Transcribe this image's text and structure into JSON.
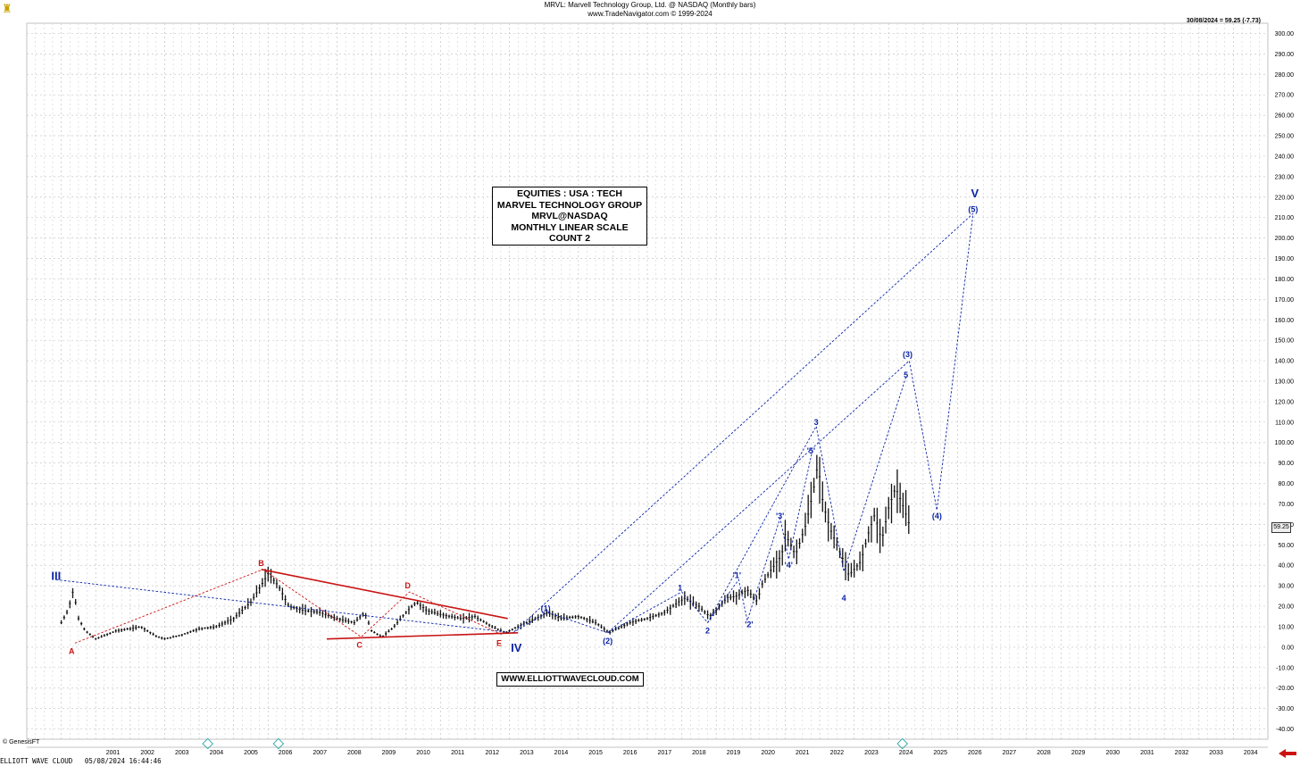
{
  "header": {
    "line1": "MRVL:  Marvell Technology Group, Ltd. @ NASDAQ  (Monthly bars)",
    "line2": "www.TradeNavigator.com © 1999-2024",
    "last": "30/08/2024 = 59.25 (-7.73)"
  },
  "info_box": [
    "EQUITIES : USA : TECH",
    "MARVEL TECHNOLOGY GROUP",
    "MRVL@NASDAQ",
    "MONTHLY LINEAR SCALE",
    "COUNT 2"
  ],
  "url": "WWW.ELLIOTTWAVECLOUD.COM",
  "genesis": "© GenesisFT",
  "footer": "ELLIOTT WAVE CLOUD   05/08/2024 16:44:46",
  "price_tag": "59.25",
  "colors": {
    "wave_blue": "#0b24a8",
    "wave_red": "#c81414",
    "grid": "#c8c8c8",
    "bar": "#111111",
    "last_arrow": "#cc1111"
  },
  "icons": {
    "corner": "bell-icon",
    "scroll": "scroll-right-arrow-icon"
  },
  "chart_data": {
    "type": "bar",
    "title": "MRVL:  Marvell Technology Group, Ltd. @ NASDAQ  (Monthly bars)",
    "ylim": [
      -45,
      305
    ],
    "xlim": [
      2000.0,
      2035.0
    ],
    "grid": true,
    "y_ticks": [
      300,
      290,
      280,
      270,
      260,
      250,
      240,
      230,
      220,
      210,
      200,
      190,
      180,
      170,
      160,
      150,
      140,
      130,
      120,
      110,
      100,
      90,
      80,
      70,
      60,
      50,
      40,
      30,
      20,
      10,
      0,
      -10,
      -20,
      -30,
      -40
    ],
    "y_tick_labels": [
      "300.00",
      "290.00",
      "280.00",
      "270.00",
      "260.00",
      "250.00",
      "240.00",
      "230.00",
      "220.00",
      "210.00",
      "200.00",
      "190.00",
      "180.00",
      "170.00",
      "160.00",
      "150.00",
      "140.00",
      "130.00",
      "120.00",
      "110.00",
      "100.00",
      "90.00",
      "80.00",
      "70.00",
      "60.00",
      "50.00",
      "40.00",
      "30.00",
      "20.00",
      "10.00",
      "0.00",
      "-10.00",
      "-20.00",
      "-30.00",
      "-40.00"
    ],
    "x_ticks": [
      "2001",
      "2002",
      "2003",
      "2004",
      "2005",
      "2006",
      "2007",
      "2008",
      "2009",
      "2010",
      "2011",
      "2012",
      "2013",
      "2014",
      "2015",
      "2016",
      "2017",
      "2018",
      "2019",
      "2020",
      "2021",
      "2022",
      "2023",
      "2024",
      "2025",
      "2026",
      "2027",
      "2028",
      "2029",
      "2030",
      "2031",
      "2032",
      "2033",
      "2034"
    ],
    "price_path": [
      [
        2000.0,
        12
      ],
      [
        2000.2,
        18
      ],
      [
        2000.35,
        28
      ],
      [
        2000.5,
        14
      ],
      [
        2000.7,
        8
      ],
      [
        2001.0,
        4
      ],
      [
        2001.3,
        6
      ],
      [
        2001.6,
        8
      ],
      [
        2002.0,
        9
      ],
      [
        2002.3,
        10
      ],
      [
        2002.5,
        8
      ],
      [
        2002.8,
        5
      ],
      [
        2003.0,
        4
      ],
      [
        2003.5,
        6
      ],
      [
        2004.0,
        9
      ],
      [
        2004.5,
        10
      ],
      [
        2005.0,
        14
      ],
      [
        2005.5,
        22
      ],
      [
        2005.9,
        33
      ],
      [
        2006.0,
        36
      ],
      [
        2006.3,
        30
      ],
      [
        2006.6,
        20
      ],
      [
        2007.0,
        18
      ],
      [
        2007.5,
        17
      ],
      [
        2008.0,
        14
      ],
      [
        2008.5,
        12
      ],
      [
        2008.8,
        17
      ],
      [
        2009.0,
        8
      ],
      [
        2009.3,
        5
      ],
      [
        2009.6,
        9
      ],
      [
        2010.0,
        17
      ],
      [
        2010.3,
        22
      ],
      [
        2010.6,
        18
      ],
      [
        2011.0,
        16
      ],
      [
        2011.3,
        15
      ],
      [
        2011.6,
        14
      ],
      [
        2012.0,
        15
      ],
      [
        2012.5,
        10
      ],
      [
        2012.9,
        7
      ],
      [
        2013.0,
        8
      ],
      [
        2013.5,
        12
      ],
      [
        2013.9,
        15
      ],
      [
        2014.1,
        17
      ],
      [
        2014.5,
        14
      ],
      [
        2015.0,
        15
      ],
      [
        2015.5,
        12
      ],
      [
        2015.9,
        7
      ],
      [
        2016.0,
        8
      ],
      [
        2016.5,
        12
      ],
      [
        2017.0,
        14
      ],
      [
        2017.5,
        17
      ],
      [
        2017.9,
        22
      ],
      [
        2018.1,
        24
      ],
      [
        2018.5,
        20
      ],
      [
        2018.8,
        15
      ],
      [
        2019.0,
        18
      ],
      [
        2019.3,
        24
      ],
      [
        2019.6,
        25
      ],
      [
        2019.9,
        28
      ],
      [
        2020.2,
        22
      ],
      [
        2020.3,
        30
      ],
      [
        2020.6,
        38
      ],
      [
        2020.9,
        45
      ],
      [
        2021.0,
        55
      ],
      [
        2021.1,
        52
      ],
      [
        2021.3,
        45
      ],
      [
        2021.6,
        60
      ],
      [
        2021.8,
        75
      ],
      [
        2021.95,
        90
      ],
      [
        2022.1,
        70
      ],
      [
        2022.3,
        58
      ],
      [
        2022.5,
        50
      ],
      [
        2022.7,
        42
      ],
      [
        2022.85,
        35
      ],
      [
        2023.0,
        38
      ],
      [
        2023.2,
        42
      ],
      [
        2023.4,
        55
      ],
      [
        2023.6,
        65
      ],
      [
        2023.8,
        52
      ],
      [
        2024.0,
        68
      ],
      [
        2024.2,
        78
      ],
      [
        2024.4,
        70
      ],
      [
        2024.6,
        60
      ]
    ],
    "waves": [
      {
        "name": "primary",
        "color": "blue",
        "points": [
          [
            1999.85,
            33
          ],
          [
            2013.1,
            7
          ],
          [
            2026.45,
            212
          ]
        ]
      },
      {
        "name": "minor",
        "color": "blue",
        "points": [
          [
            2013.1,
            7
          ],
          [
            2014.1,
            17
          ],
          [
            2015.85,
            7
          ],
          [
            2024.6,
            140
          ],
          [
            2025.4,
            67
          ],
          [
            2026.45,
            212
          ]
        ]
      },
      {
        "name": "corrective-abc",
        "color": "red",
        "points": [
          [
            2000.4,
            2
          ],
          [
            2005.85,
            38
          ],
          [
            2008.7,
            5
          ],
          [
            2010.1,
            27
          ],
          [
            2012.8,
            6
          ]
        ]
      },
      {
        "name": "sub-waves",
        "color": "blue",
        "points": [
          [
            2015.85,
            7
          ],
          [
            2018.0,
            27
          ],
          [
            2018.75,
            12
          ],
          [
            2021.9,
            108
          ],
          [
            2022.7,
            37
          ],
          [
            2024.5,
            132
          ]
        ]
      },
      {
        "name": "inner",
        "color": "blue",
        "points": [
          [
            2018.75,
            12
          ],
          [
            2019.65,
            33
          ],
          [
            2019.9,
            13
          ],
          [
            2020.85,
            63
          ],
          [
            2021.1,
            43
          ],
          [
            2021.8,
            97
          ]
        ]
      }
    ],
    "trendlines": [
      {
        "color": "red",
        "from": [
          2005.8,
          38
        ],
        "to": [
          2012.95,
          14
        ]
      },
      {
        "color": "red",
        "from": [
          2007.7,
          4
        ],
        "to": [
          2013.25,
          7
        ]
      }
    ],
    "labels": [
      {
        "text": "III",
        "x": 1999.85,
        "y": 35,
        "color": "blue",
        "size": "big"
      },
      {
        "text": "A",
        "x": 2000.3,
        "y": -2,
        "color": "red",
        "size": "small"
      },
      {
        "text": "B",
        "x": 2005.8,
        "y": 41,
        "color": "red",
        "size": "small"
      },
      {
        "text": "C",
        "x": 2008.65,
        "y": 1,
        "color": "red",
        "size": "small"
      },
      {
        "text": "D",
        "x": 2010.05,
        "y": 30,
        "color": "red",
        "size": "small"
      },
      {
        "text": "E",
        "x": 2012.7,
        "y": 2,
        "color": "red",
        "size": "small"
      },
      {
        "text": "IV",
        "x": 2013.2,
        "y": 0,
        "color": "blue",
        "size": "big"
      },
      {
        "text": "(1)",
        "x": 2014.05,
        "y": 19,
        "color": "blue",
        "size": "small"
      },
      {
        "text": "(2)",
        "x": 2015.85,
        "y": 3,
        "color": "blue",
        "size": "small"
      },
      {
        "text": "1",
        "x": 2017.95,
        "y": 29,
        "color": "blue",
        "size": "small"
      },
      {
        "text": "2",
        "x": 2018.75,
        "y": 8,
        "color": "blue",
        "size": "small"
      },
      {
        "text": "'1'",
        "x": 2019.6,
        "y": 35,
        "color": "blue",
        "size": "small"
      },
      {
        "text": "'2'",
        "x": 2019.95,
        "y": 11,
        "color": "blue",
        "size": "small"
      },
      {
        "text": "'3'",
        "x": 2020.85,
        "y": 64,
        "color": "blue",
        "size": "small"
      },
      {
        "text": "'4'",
        "x": 2021.1,
        "y": 40,
        "color": "blue",
        "size": "small"
      },
      {
        "text": "'5'",
        "x": 2021.75,
        "y": 96,
        "color": "blue",
        "size": "small"
      },
      {
        "text": "3",
        "x": 2021.9,
        "y": 110,
        "color": "blue",
        "size": "small"
      },
      {
        "text": "4",
        "x": 2022.7,
        "y": 24,
        "color": "blue",
        "size": "small"
      },
      {
        "text": "5",
        "x": 2024.5,
        "y": 133,
        "color": "blue",
        "size": "small"
      },
      {
        "text": "(3)",
        "x": 2024.55,
        "y": 143,
        "color": "blue",
        "size": "small"
      },
      {
        "text": "(4)",
        "x": 2025.4,
        "y": 64,
        "color": "blue",
        "size": "small"
      },
      {
        "text": "(5)",
        "x": 2026.45,
        "y": 214,
        "color": "blue",
        "size": "small"
      },
      {
        "text": "V",
        "x": 2026.5,
        "y": 222,
        "color": "blue",
        "size": "big"
      }
    ]
  }
}
